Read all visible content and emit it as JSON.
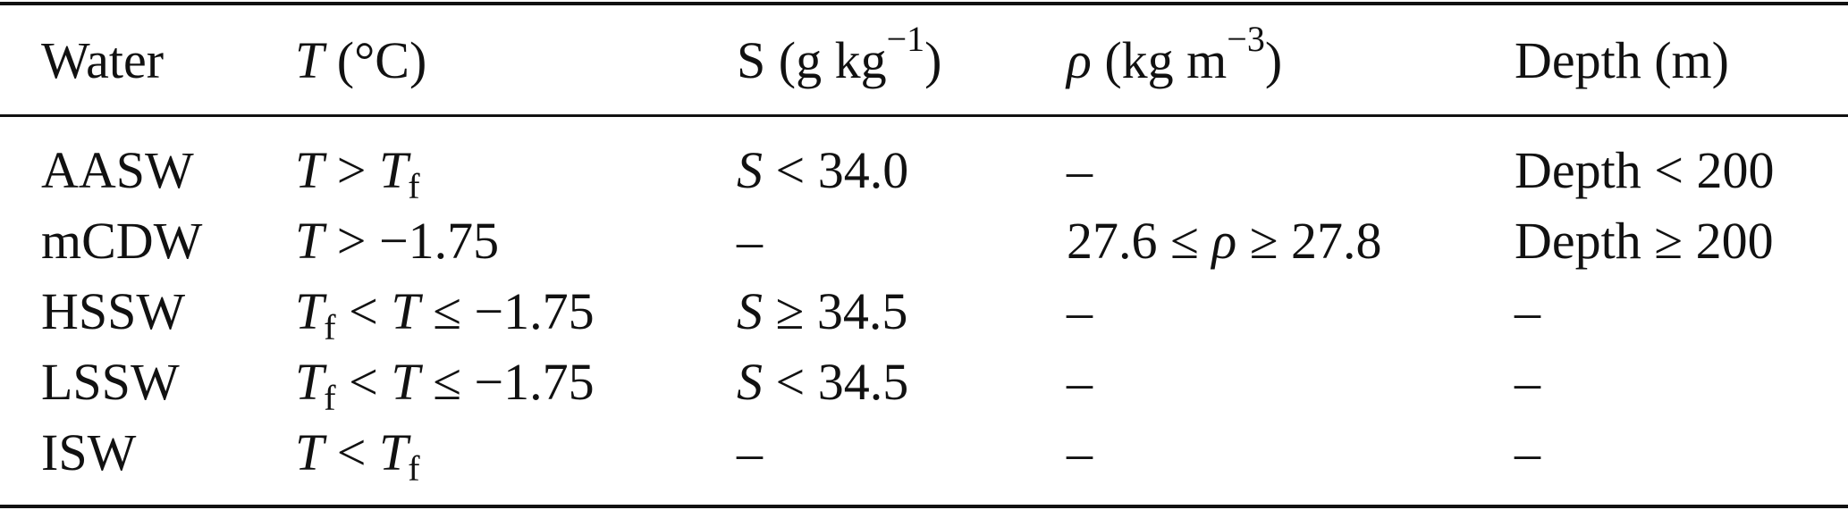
{
  "table": {
    "header": [
      [
        {
          "t": "Water"
        }
      ],
      [
        {
          "t": "T",
          "i": true
        },
        {
          "t": " (°C)"
        }
      ],
      [
        {
          "t": "S (g kg"
        },
        {
          "t": "−1",
          "sup": true
        },
        {
          "t": ")"
        }
      ],
      [
        {
          "t": "ρ",
          "i": true
        },
        {
          "t": " (kg m"
        },
        {
          "t": "−3",
          "sup": true
        },
        {
          "t": ")"
        }
      ],
      [
        {
          "t": "Depth (m)"
        }
      ]
    ],
    "rows": [
      [
        [
          {
            "t": "AASW"
          }
        ],
        [
          {
            "t": "T",
            "i": true
          },
          {
            "t": " > "
          },
          {
            "t": "T",
            "i": true
          },
          {
            "t": "f",
            "sub": true
          }
        ],
        [
          {
            "t": "S",
            "i": true
          },
          {
            "t": " < 34.0"
          }
        ],
        [
          {
            "t": "–"
          }
        ],
        [
          {
            "t": "Depth < 200"
          }
        ]
      ],
      [
        [
          {
            "t": "mCDW"
          }
        ],
        [
          {
            "t": "T",
            "i": true
          },
          {
            "t": " > −1.75"
          }
        ],
        [
          {
            "t": "–"
          }
        ],
        [
          {
            "t": "27.6 ≤ "
          },
          {
            "t": "ρ",
            "i": true
          },
          {
            "t": " ≥ 27.8"
          }
        ],
        [
          {
            "t": "Depth ≥ 200"
          }
        ]
      ],
      [
        [
          {
            "t": "HSSW"
          }
        ],
        [
          {
            "t": "T",
            "i": true
          },
          {
            "t": "f",
            "sub": true
          },
          {
            "t": " < "
          },
          {
            "t": "T",
            "i": true
          },
          {
            "t": " ≤ −1.75"
          }
        ],
        [
          {
            "t": "S",
            "i": true
          },
          {
            "t": " ≥ 34.5"
          }
        ],
        [
          {
            "t": "–"
          }
        ],
        [
          {
            "t": "–"
          }
        ]
      ],
      [
        [
          {
            "t": "LSSW"
          }
        ],
        [
          {
            "t": "T",
            "i": true
          },
          {
            "t": "f",
            "sub": true
          },
          {
            "t": " < "
          },
          {
            "t": "T",
            "i": true
          },
          {
            "t": " ≤ −1.75"
          }
        ],
        [
          {
            "t": "S",
            "i": true
          },
          {
            "t": " < 34.5"
          }
        ],
        [
          {
            "t": "–"
          }
        ],
        [
          {
            "t": "–"
          }
        ]
      ],
      [
        [
          {
            "t": "ISW"
          }
        ],
        [
          {
            "t": "T",
            "i": true
          },
          {
            "t": " < "
          },
          {
            "t": "T",
            "i": true
          },
          {
            "t": "f",
            "sub": true
          }
        ],
        [
          {
            "t": "–"
          }
        ],
        [
          {
            "t": "–"
          }
        ],
        [
          {
            "t": "–"
          }
        ]
      ]
    ]
  }
}
